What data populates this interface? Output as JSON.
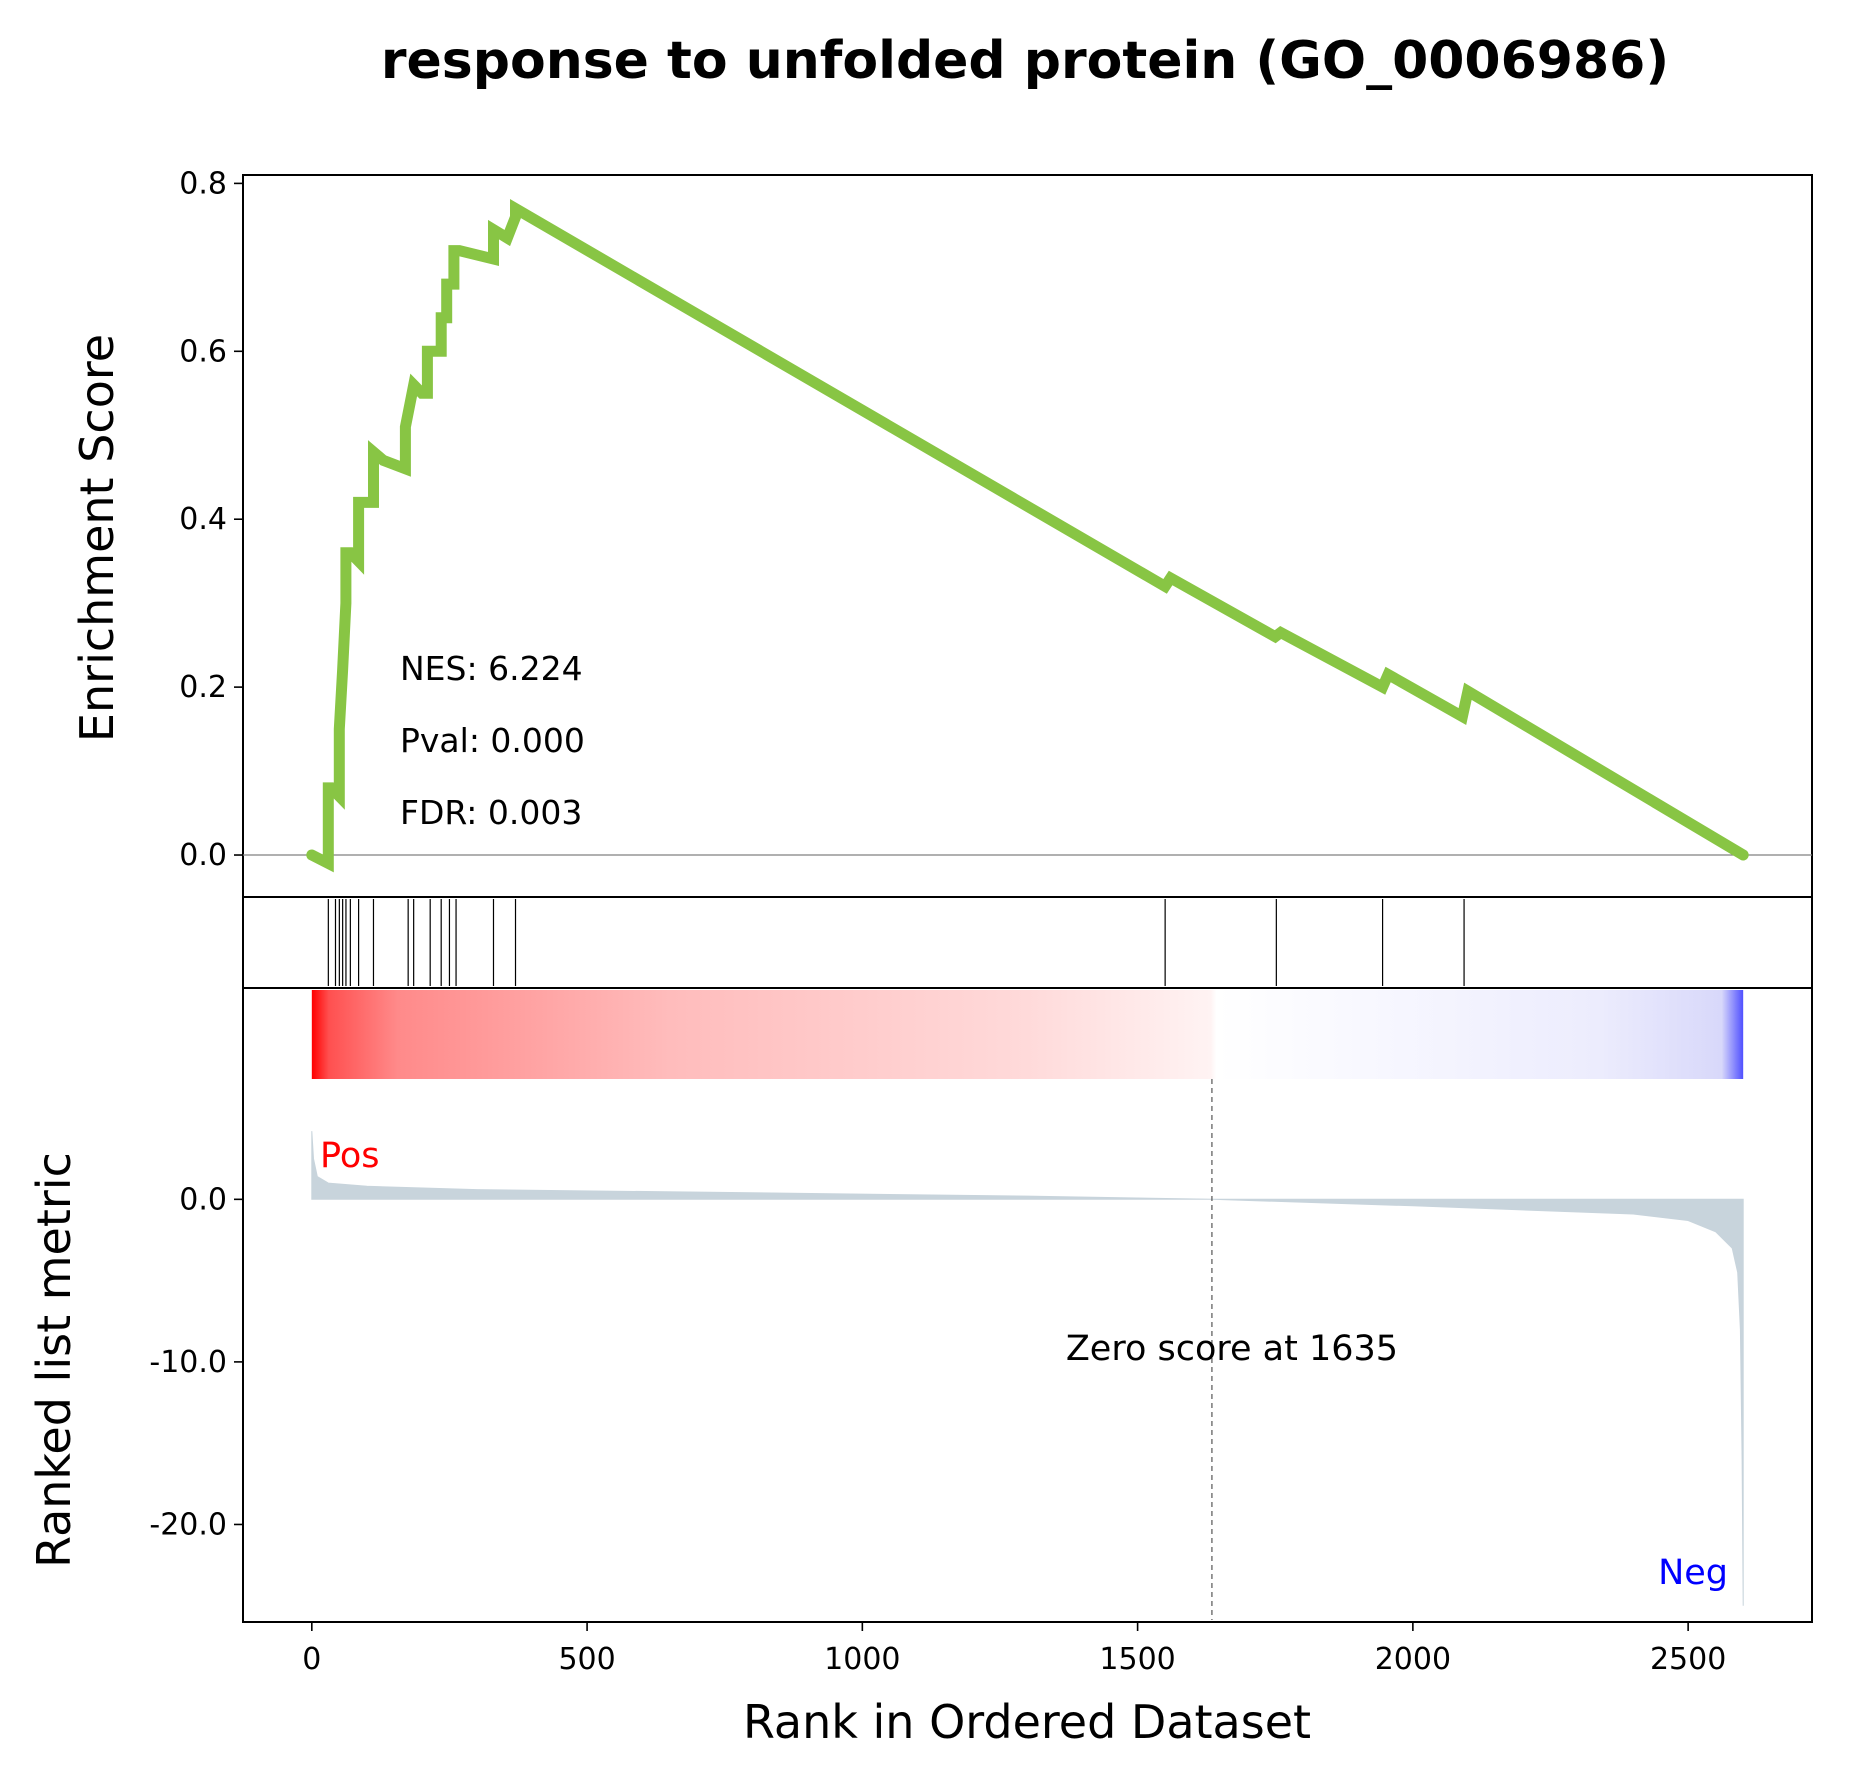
{
  "chart_data": {
    "type": "line",
    "title": "response to unfolded protein (GO_0006986)",
    "xlabel": "Rank in Ordered Dataset",
    "xlim": [
      -125,
      2725
    ],
    "xticks": [
      0,
      500,
      1000,
      1500,
      2000,
      2500
    ],
    "es_panel": {
      "ylabel": "Enrichment Score",
      "ylim": [
        -0.05,
        0.81
      ],
      "yticks": [
        "0.0",
        "0.2",
        "0.4",
        "0.6",
        "0.8"
      ],
      "ytick_values": [
        0.0,
        0.2,
        0.4,
        0.6,
        0.8
      ],
      "line_color": "#88c544",
      "series": [
        {
          "x": [
            0,
            30,
            30,
            35,
            35,
            50,
            50,
            56,
            56,
            62,
            62,
            70,
            70,
            85,
            85,
            100,
            100,
            112,
            112,
            130,
            170,
            170,
            185,
            185,
            200,
            210,
            210,
            235,
            235,
            245,
            245,
            258,
            258,
            268,
            268,
            330,
            330,
            355,
            355,
            370,
            370,
            1550,
            1550,
            1560,
            1750,
            1750,
            1760,
            1945,
            1945,
            1955,
            2090,
            2090,
            2100,
            2600
          ],
          "y": [
            0.0,
            -0.01,
            0.08,
            0.08,
            0.08,
            0.07,
            0.15,
            0.22,
            0.22,
            0.3,
            0.36,
            0.36,
            0.36,
            0.35,
            0.42,
            0.42,
            0.42,
            0.42,
            0.48,
            0.47,
            0.46,
            0.51,
            0.56,
            0.56,
            0.55,
            0.55,
            0.6,
            0.6,
            0.64,
            0.64,
            0.68,
            0.68,
            0.72,
            0.72,
            0.72,
            0.71,
            0.745,
            0.735,
            0.735,
            0.76,
            0.77,
            0.32,
            0.32,
            0.33,
            0.26,
            0.26,
            0.265,
            0.2,
            0.2,
            0.215,
            0.165,
            0.165,
            0.195,
            0.0
          ]
        }
      ],
      "stats": [
        "NES: 6.224",
        "Pval: 0.000",
        "FDR: 0.003"
      ]
    },
    "hits": [
      30,
      43,
      50,
      56,
      62,
      70,
      85,
      112,
      175,
      185,
      215,
      235,
      250,
      262,
      330,
      370,
      1550,
      1752,
      1945,
      2093
    ],
    "ranked_panel": {
      "ylabel": "Ranked list metric",
      "ylim": [
        -26,
        13
      ],
      "yticks": [
        "0.0",
        "-10.0",
        "-20.0"
      ],
      "ytick_values": [
        0,
        -10,
        -20
      ],
      "fill_color": "#c8d4dc",
      "metric_x": [
        0,
        3,
        10,
        30,
        100,
        300,
        800,
        1300,
        1635,
        2000,
        2400,
        2500,
        2550,
        2580,
        2590,
        2595,
        2598,
        2600
      ],
      "metric_y": [
        4.2,
        2.5,
        1.4,
        1.0,
        0.8,
        0.6,
        0.4,
        0.2,
        0.0,
        -0.4,
        -0.9,
        -1.3,
        -2.0,
        -3.0,
        -4.5,
        -8.0,
        -16.0,
        -25.0
      ],
      "zero_score_rank": 1635,
      "zero_score_label": "Zero score at 1635",
      "pos_label": "Pos",
      "neg_label": "Neg",
      "pos_color": "#ff0000",
      "neg_color": "#0000ff"
    }
  }
}
